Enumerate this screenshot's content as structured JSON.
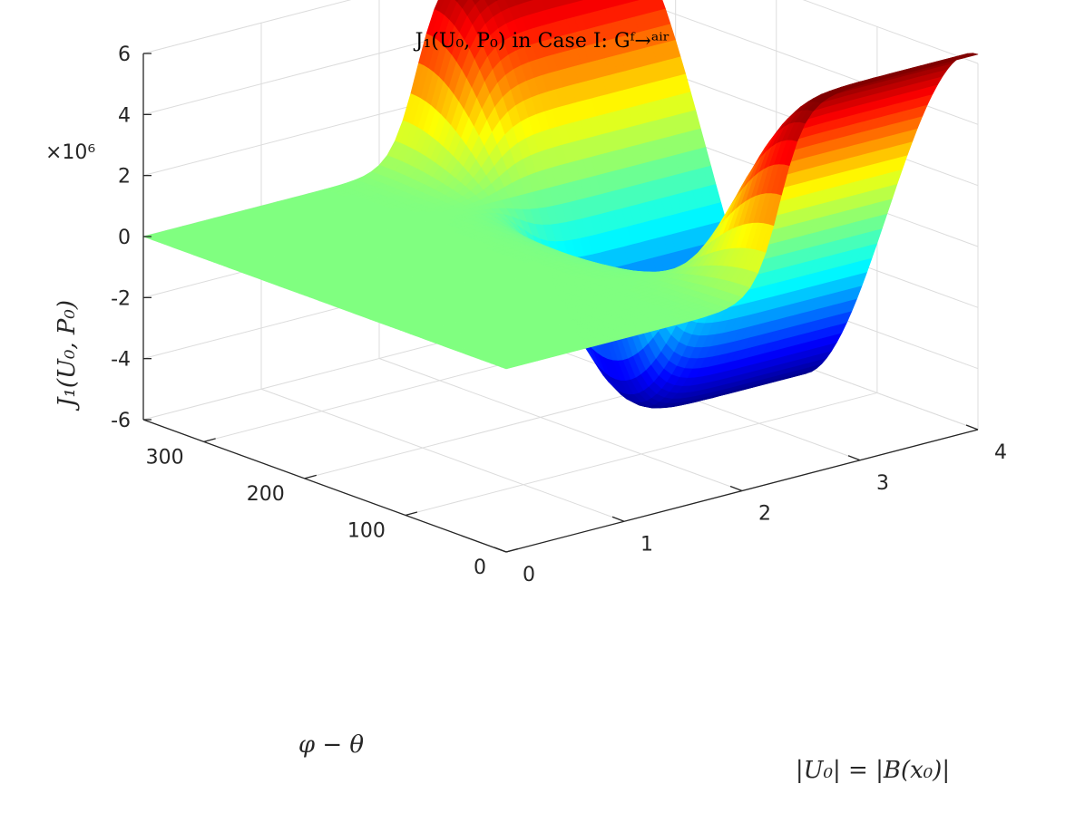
{
  "chart_data": {
    "type": "surface",
    "title": "J₁(U₀, P₀) in Case I: Gᶠ→ᵃⁱʳ",
    "xlabel": "|U₀| = |B(x₀)|",
    "ylabel": "φ − θ",
    "zlabel": "J₁(U₀, P₀)",
    "z_exponent_label": "×10⁶",
    "xlim": [
      0,
      4
    ],
    "ylim": [
      0,
      360
    ],
    "zlim": [
      -6,
      6
    ],
    "x_ticks": [
      "0",
      "1",
      "2",
      "3",
      "4"
    ],
    "y_ticks": [
      "0",
      "100",
      "200",
      "300"
    ],
    "z_ticks": [
      "6",
      "4",
      "2",
      "0",
      "-2",
      "-4",
      "-6"
    ],
    "grid": true,
    "colormap": "jet",
    "colormap_stops": [
      "#00008f",
      "#0000ff",
      "#00ffff",
      "#80ff80",
      "#ffff00",
      "#ff0000",
      "#800000"
    ],
    "surface_points": [
      {
        "x": 0,
        "y": 0,
        "z": 0
      },
      {
        "x": 0,
        "y": 360,
        "z": 0
      },
      {
        "x": 1.8,
        "y": 0,
        "z": 0
      },
      {
        "x": 2.5,
        "y": 180,
        "z": -6.3
      },
      {
        "x": 2.5,
        "y": 360,
        "z": 6.3
      },
      {
        "x": 4,
        "y": 0,
        "z": 6.3
      },
      {
        "x": 4,
        "y": 180,
        "z": -6.3
      },
      {
        "x": 4,
        "y": 360,
        "z": 6.3
      }
    ]
  }
}
